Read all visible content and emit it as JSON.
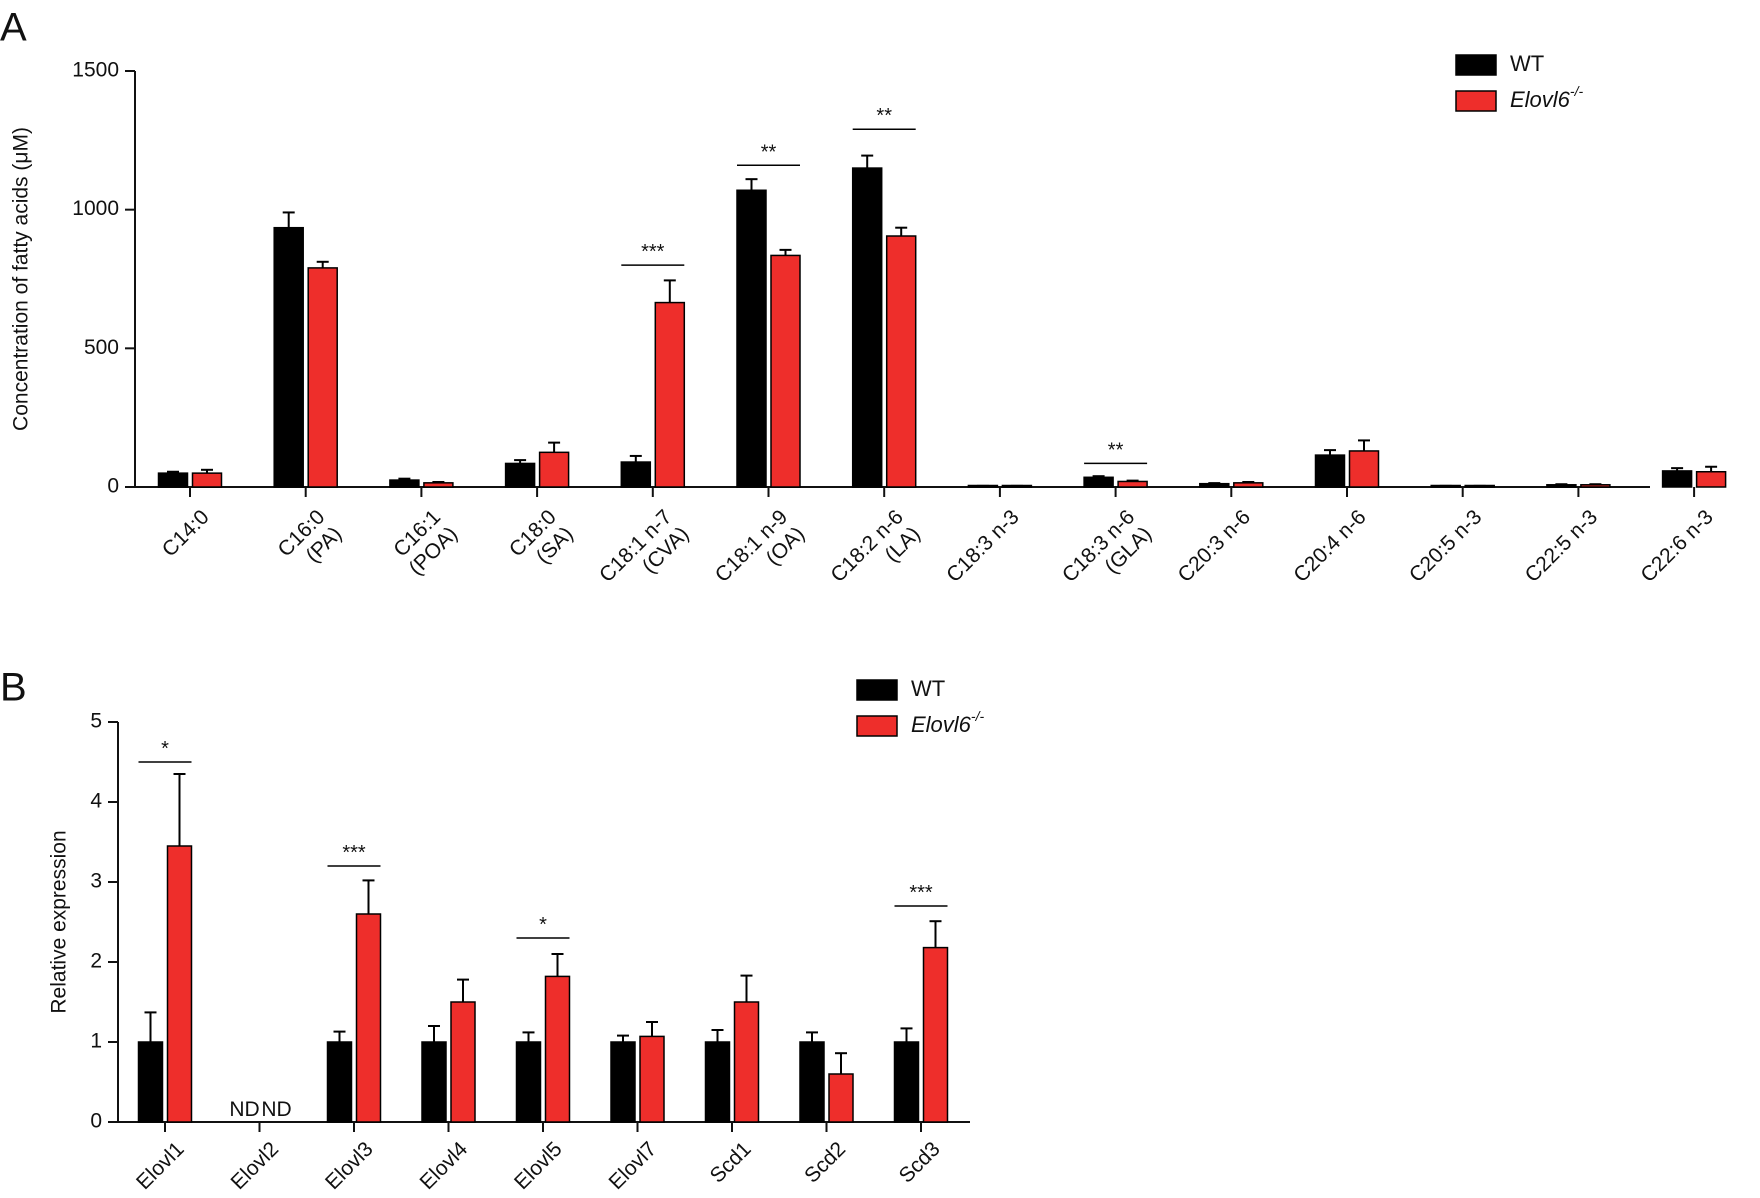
{
  "colors": {
    "wt": "#000000",
    "ko": "#ee2e2b",
    "axis": "#111111"
  },
  "chart_data": [
    {
      "panel": "A",
      "type": "bar",
      "ylabel": "Concentration of fatty acids (μM)",
      "ylim": [
        0,
        1500
      ],
      "yticks": [
        "0",
        "500",
        "1000",
        "1500"
      ],
      "legend": {
        "position": "top-right",
        "entries": [
          {
            "label": "WT",
            "key": "wt"
          },
          {
            "prefix": "Elovl6",
            "sup": "-/-",
            "key": "ko"
          }
        ]
      },
      "categories": [
        [
          "C14:0"
        ],
        [
          "C16:0",
          "(PA)"
        ],
        [
          "C16:1",
          "(POA)"
        ],
        [
          "C18:0",
          "(SA)"
        ],
        [
          "C18:1 n-7",
          "(CVA)"
        ],
        [
          "C18:1 n-9",
          "(OA)"
        ],
        [
          "C18:2 n-6",
          "(LA)"
        ],
        [
          "C18:3 n-3"
        ],
        [
          "C18:3 n-6",
          "(GLA)"
        ],
        [
          "C20:3 n-6"
        ],
        [
          "C20:4 n-6"
        ],
        [
          "C20:5 n-3"
        ],
        [
          "C22:5 n-3"
        ],
        [
          "C22:6 n-3"
        ]
      ],
      "series": [
        {
          "name": "WT",
          "values": [
            50,
            935,
            25,
            85,
            90,
            1070,
            1150,
            3,
            35,
            12,
            115,
            3,
            8,
            58
          ],
          "errors": [
            5,
            55,
            5,
            12,
            22,
            40,
            45,
            1,
            4,
            2,
            18,
            1,
            2,
            10
          ]
        },
        {
          "name": "Elovl6-/-",
          "values": [
            50,
            790,
            15,
            125,
            665,
            835,
            905,
            3,
            20,
            15,
            130,
            3,
            8,
            55
          ],
          "errors": [
            12,
            22,
            3,
            35,
            80,
            20,
            30,
            1,
            3,
            3,
            38,
            1,
            2,
            18
          ]
        }
      ],
      "significance": [
        {
          "category": 4,
          "label": "***",
          "y": 800
        },
        {
          "category": 5,
          "label": "**",
          "y": 1160
        },
        {
          "category": 6,
          "label": "**",
          "y": 1290
        },
        {
          "category": 8,
          "label": "**",
          "y": 85
        }
      ]
    },
    {
      "panel": "B",
      "type": "bar",
      "ylabel": "Relative expression",
      "ylim": [
        0,
        5
      ],
      "yticks": [
        "0",
        "1",
        "2",
        "3",
        "4",
        "5"
      ],
      "legend": {
        "position": "top-center",
        "entries": [
          {
            "label": "WT",
            "key": "wt"
          },
          {
            "prefix": "Elovl6",
            "sup": "-/-",
            "key": "ko"
          }
        ]
      },
      "categories": [
        [
          "Elovl1"
        ],
        [
          "Elovl2"
        ],
        [
          "Elovl3"
        ],
        [
          "Elovl4"
        ],
        [
          "Elovl5"
        ],
        [
          "Elovl7"
        ],
        [
          "Scd1"
        ],
        [
          "Scd2"
        ],
        [
          "Scd3"
        ]
      ],
      "series": [
        {
          "name": "WT",
          "values": [
            1.0,
            null,
            1.0,
            1.0,
            1.0,
            1.0,
            1.0,
            1.0,
            1.0
          ],
          "errors": [
            0.37,
            null,
            0.13,
            0.2,
            0.12,
            0.08,
            0.15,
            0.12,
            0.17
          ]
        },
        {
          "name": "Elovl6-/-",
          "values": [
            3.45,
            null,
            2.6,
            1.5,
            1.82,
            1.07,
            1.5,
            0.6,
            2.18
          ],
          "errors": [
            0.9,
            null,
            0.42,
            0.28,
            0.28,
            0.18,
            0.33,
            0.26,
            0.33
          ]
        }
      ],
      "not_detected": {
        "category": 1,
        "labels": [
          "ND",
          "ND"
        ]
      },
      "significance": [
        {
          "category": 0,
          "label": "*",
          "y": 4.5
        },
        {
          "category": 2,
          "label": "***",
          "y": 3.2
        },
        {
          "category": 4,
          "label": "*",
          "y": 2.3
        },
        {
          "category": 8,
          "label": "***",
          "y": 2.7
        }
      ]
    }
  ]
}
